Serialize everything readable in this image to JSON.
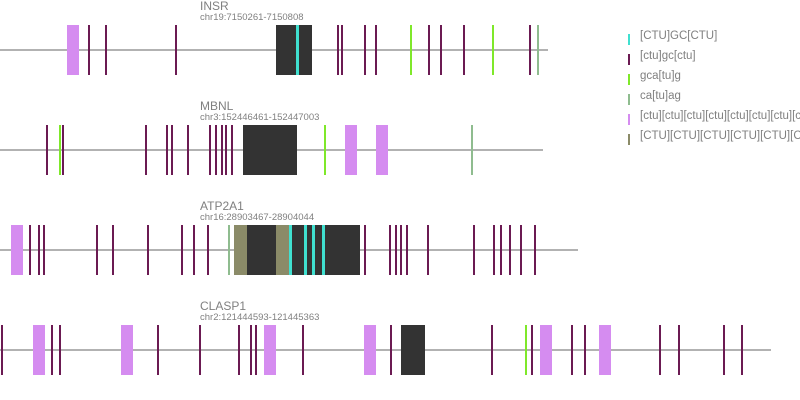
{
  "motif_colors": {
    "ctu_gc_ctu_upper": "#40e0d0",
    "ctu_gc_ctu_lower": "#6b1a52",
    "gca_tu_g": "#7fe82a",
    "ca_tu_ag": "#8fbc8f",
    "ctu_repeat_lower": "#d58cf0",
    "ctu_repeat_upper": "#8b8b68",
    "exon": "#333333",
    "intron_line": "#999999"
  },
  "legend": [
    {
      "label": "[CTU]GC[CTU]",
      "color": "#40e0d0"
    },
    {
      "label": "[ctu]gc[ctu]",
      "color": "#6b1a52"
    },
    {
      "label": "gca[tu]g",
      "color": "#7fe82a"
    },
    {
      "label": "ca[tu]ag",
      "color": "#8fbc8f"
    },
    {
      "label": "[ctu][ctu][ctu][ctu][ctu][ctu][ctu][ctu][ctu][ctu]",
      "color": "#d58cf0"
    },
    {
      "label": "[CTU][CTU][CTU][CTU][CTU][CTU][CTU][CTU][CTU][CTU]",
      "color": "#8b8b68"
    }
  ],
  "genes": [
    {
      "name": "INSR",
      "coords": "chr19:7150261-7150808"
    },
    {
      "name": "MBNL",
      "coords": "chr3:152446461-152447003"
    },
    {
      "name": "ATP2A1",
      "coords": "chr16:28903467-28904044"
    },
    {
      "name": "CLASP1",
      "coords": "chr2:121444593-121445363"
    }
  ]
}
